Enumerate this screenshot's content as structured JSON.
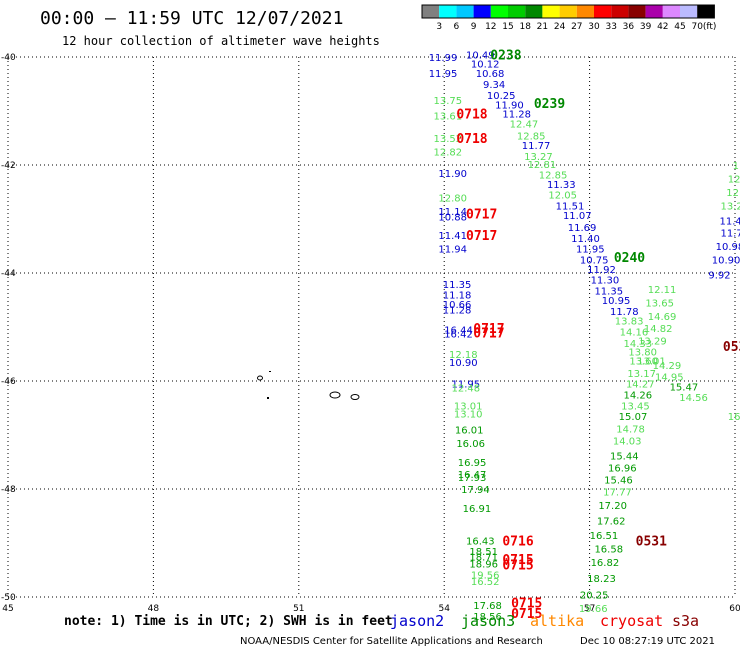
{
  "header": {
    "title": "00:00 – 11:59 UTC 12/07/2021",
    "subtitle": "12 hour collection of altimeter wave heights"
  },
  "colorbar": {
    "ticks": [
      "3",
      "6",
      "9",
      "12",
      "15",
      "18",
      "21",
      "24",
      "27",
      "30",
      "33",
      "36",
      "39",
      "42",
      "45",
      "70"
    ],
    "unit": "(ft)",
    "colors": [
      "#808080",
      "#00ffff",
      "#00c8ff",
      "#0000ff",
      "#00ff00",
      "#00cc00",
      "#008800",
      "#ffff00",
      "#ffcc00",
      "#ff8800",
      "#ff0000",
      "#cc0000",
      "#880000",
      "#aa00aa",
      "#dd88ff",
      "#bbbbff",
      "#000000"
    ]
  },
  "footer": {
    "note": "note: 1) Time is in UTC; 2) SWH is in feet",
    "satellites": [
      {
        "name": "jason2",
        "color": "#0000cc"
      },
      {
        "name": "jason3",
        "color": "#008800"
      },
      {
        "name": "altika",
        "color": "#ff8800"
      },
      {
        "name": "cryosat",
        "color": "#ee0000"
      },
      {
        "name": "s3a",
        "color": "#880000"
      }
    ],
    "credit": "NOAA/NESDIS Center for Satellite Applications and Research",
    "timestamp": "Dec 10 08:27:19 UTC 2021"
  },
  "chart_data": {
    "type": "scatter",
    "title": "00:00 – 11:59 UTC 12/07/2021",
    "subtitle": "12 hour collection of altimeter wave heights",
    "x_ticks": [
      "45",
      "48",
      "51",
      "54",
      "57",
      "60"
    ],
    "y_ticks": [
      "-40",
      "-42",
      "-44",
      "-46",
      "-48",
      "-50"
    ],
    "xlim": [
      45,
      60
    ],
    "ylim": [
      -50,
      -40
    ],
    "grid": true,
    "colors": {
      "blue": "#0000cc",
      "lightgreen": "#55dd55",
      "green": "#009900",
      "darkgreen": "#008800",
      "red": "#ee0000",
      "darkred": "#880000"
    },
    "labels": [
      {
        "t": "11.99",
        "x": 53.68,
        "y": -40.0,
        "c": "blue"
      },
      {
        "t": "11.95",
        "x": 53.68,
        "y": -40.3,
        "c": "blue"
      },
      {
        "t": "13.75",
        "x": 53.78,
        "y": -40.8,
        "c": "lightgreen"
      },
      {
        "t": "13.61",
        "x": 53.78,
        "y": -41.08,
        "c": "lightgreen"
      },
      {
        "t": "13.52",
        "x": 53.78,
        "y": -41.5,
        "c": "lightgreen"
      },
      {
        "t": "12.82",
        "x": 53.78,
        "y": -41.75,
        "c": "lightgreen"
      },
      {
        "t": "11.90",
        "x": 53.88,
        "y": -42.15,
        "c": "blue"
      },
      {
        "t": "12.80",
        "x": 53.88,
        "y": -42.6,
        "c": "lightgreen"
      },
      {
        "t": "11.14",
        "x": 53.88,
        "y": -42.85,
        "c": "blue"
      },
      {
        "t": "10.88",
        "x": 53.88,
        "y": -42.95,
        "c": "blue"
      },
      {
        "t": "11.41",
        "x": 53.88,
        "y": -43.3,
        "c": "blue"
      },
      {
        "t": "11.94",
        "x": 53.88,
        "y": -43.55,
        "c": "blue"
      },
      {
        "t": "11.35",
        "x": 53.97,
        "y": -44.2,
        "c": "blue"
      },
      {
        "t": "11.18",
        "x": 53.97,
        "y": -44.4,
        "c": "blue"
      },
      {
        "t": "10.66",
        "x": 53.97,
        "y": -44.57,
        "c": "blue"
      },
      {
        "t": "11.28",
        "x": 53.97,
        "y": -44.68,
        "c": "blue"
      },
      {
        "t": "16.44",
        "x": 54.0,
        "y": -45.05,
        "c": "blue"
      },
      {
        "t": "16.42",
        "x": 54.0,
        "y": -45.12,
        "c": "blue"
      },
      {
        "t": "12.18",
        "x": 54.1,
        "y": -45.5,
        "c": "lightgreen"
      },
      {
        "t": "10.90",
        "x": 54.1,
        "y": -45.65,
        "c": "blue"
      },
      {
        "t": "11.95",
        "x": 54.15,
        "y": -46.05,
        "c": "blue"
      },
      {
        "t": "12.48",
        "x": 54.15,
        "y": -46.12,
        "c": "lightgreen"
      },
      {
        "t": "13.01",
        "x": 54.2,
        "y": -46.45,
        "c": "lightgreen"
      },
      {
        "t": "13.10",
        "x": 54.2,
        "y": -46.6,
        "c": "lightgreen"
      },
      {
        "t": "16.01",
        "x": 54.22,
        "y": -46.9,
        "c": "green"
      },
      {
        "t": "16.06",
        "x": 54.25,
        "y": -47.15,
        "c": "green"
      },
      {
        "t": "16.95",
        "x": 54.28,
        "y": -47.5,
        "c": "green"
      },
      {
        "t": "16.47",
        "x": 54.28,
        "y": -47.72,
        "c": "green"
      },
      {
        "t": "17.93",
        "x": 54.28,
        "y": -47.78,
        "c": "green"
      },
      {
        "t": "17.94",
        "x": 54.35,
        "y": -48.0,
        "c": "green"
      },
      {
        "t": "16.91",
        "x": 54.38,
        "y": -48.35,
        "c": "green"
      },
      {
        "t": "16.43",
        "x": 54.45,
        "y": -48.95,
        "c": "green"
      },
      {
        "t": "18.51",
        "x": 54.52,
        "y": -49.15,
        "c": "green"
      },
      {
        "t": "18.71",
        "x": 54.52,
        "y": -49.25,
        "c": "green"
      },
      {
        "t": "18.96",
        "x": 54.52,
        "y": -49.38,
        "c": "green"
      },
      {
        "t": "19.56",
        "x": 54.55,
        "y": -49.58,
        "c": "lightgreen"
      },
      {
        "t": "16.52",
        "x": 54.55,
        "y": -49.7,
        "c": "lightgreen"
      },
      {
        "t": "17.68",
        "x": 54.6,
        "y": -50.15,
        "c": "green"
      },
      {
        "t": "18.56",
        "x": 54.6,
        "y": -50.35,
        "c": "green"
      },
      {
        "t": "10.49",
        "x": 54.45,
        "y": -39.95,
        "c": "blue"
      },
      {
        "t": "10.12",
        "x": 54.55,
        "y": -40.12,
        "c": "blue"
      },
      {
        "t": "10.68",
        "x": 54.65,
        "y": -40.3,
        "c": "blue"
      },
      {
        "t": "9.34",
        "x": 54.8,
        "y": -40.5,
        "c": "blue"
      },
      {
        "t": "10.25",
        "x": 54.88,
        "y": -40.7,
        "c": "blue"
      },
      {
        "t": "11.90",
        "x": 55.05,
        "y": -40.88,
        "c": "blue"
      },
      {
        "t": "11.28",
        "x": 55.2,
        "y": -41.05,
        "c": "blue"
      },
      {
        "t": "12.47",
        "x": 55.35,
        "y": -41.23,
        "c": "lightgreen"
      },
      {
        "t": "12.85",
        "x": 55.5,
        "y": -41.45,
        "c": "lightgreen"
      },
      {
        "t": "11.77",
        "x": 55.6,
        "y": -41.63,
        "c": "blue"
      },
      {
        "t": "13.27",
        "x": 55.65,
        "y": -41.83,
        "c": "lightgreen"
      },
      {
        "t": "12.81",
        "x": 55.72,
        "y": -41.98,
        "c": "lightgreen"
      },
      {
        "t": "12.85",
        "x": 55.95,
        "y": -42.18,
        "c": "lightgreen"
      },
      {
        "t": "11.33",
        "x": 56.12,
        "y": -42.35,
        "c": "blue"
      },
      {
        "t": "12.05",
        "x": 56.15,
        "y": -42.55,
        "c": "lightgreen"
      },
      {
        "t": "11.51",
        "x": 56.3,
        "y": -42.75,
        "c": "blue"
      },
      {
        "t": "11.07",
        "x": 56.45,
        "y": -42.93,
        "c": "blue"
      },
      {
        "t": "11.69",
        "x": 56.55,
        "y": -43.15,
        "c": "blue"
      },
      {
        "t": "11.40",
        "x": 56.62,
        "y": -43.35,
        "c": "blue"
      },
      {
        "t": "11.95",
        "x": 56.72,
        "y": -43.55,
        "c": "blue"
      },
      {
        "t": "10.75",
        "x": 56.8,
        "y": -43.75,
        "c": "blue"
      },
      {
        "t": "11.92",
        "x": 56.95,
        "y": -43.93,
        "c": "blue"
      },
      {
        "t": "11.30",
        "x": 57.02,
        "y": -44.12,
        "c": "blue"
      },
      {
        "t": "11.35",
        "x": 57.1,
        "y": -44.32,
        "c": "blue"
      },
      {
        "t": "10.95",
        "x": 57.25,
        "y": -44.5,
        "c": "blue"
      },
      {
        "t": "11.78",
        "x": 57.42,
        "y": -44.7,
        "c": "blue"
      },
      {
        "t": "13.83",
        "x": 57.52,
        "y": -44.88,
        "c": "lightgreen"
      },
      {
        "t": "14.16",
        "x": 57.62,
        "y": -45.08,
        "c": "lightgreen"
      },
      {
        "t": "14.33",
        "x": 57.7,
        "y": -45.3,
        "c": "lightgreen"
      },
      {
        "t": "13.80",
        "x": 57.8,
        "y": -45.45,
        "c": "lightgreen"
      },
      {
        "t": "13.60",
        "x": 57.82,
        "y": -45.62,
        "c": "lightgreen"
      },
      {
        "t": "13.17",
        "x": 57.78,
        "y": -45.85,
        "c": "lightgreen"
      },
      {
        "t": "14.27",
        "x": 57.75,
        "y": -46.05,
        "c": "lightgreen"
      },
      {
        "t": "14.26",
        "x": 57.7,
        "y": -46.25,
        "c": "green"
      },
      {
        "t": "13.45",
        "x": 57.65,
        "y": -46.45,
        "c": "lightgreen"
      },
      {
        "t": "15.07",
        "x": 57.6,
        "y": -46.65,
        "c": "green"
      },
      {
        "t": "14.78",
        "x": 57.55,
        "y": -46.88,
        "c": "lightgreen"
      },
      {
        "t": "14.03",
        "x": 57.48,
        "y": -47.1,
        "c": "lightgreen"
      },
      {
        "t": "15.44",
        "x": 57.42,
        "y": -47.38,
        "c": "green"
      },
      {
        "t": "16.96",
        "x": 57.38,
        "y": -47.6,
        "c": "green"
      },
      {
        "t": "15.46",
        "x": 57.3,
        "y": -47.82,
        "c": "green"
      },
      {
        "t": "17.77",
        "x": 57.28,
        "y": -48.05,
        "c": "lightgreen"
      },
      {
        "t": "17.20",
        "x": 57.18,
        "y": -48.3,
        "c": "green"
      },
      {
        "t": "17.62",
        "x": 57.15,
        "y": -48.58,
        "c": "green"
      },
      {
        "t": "16.51",
        "x": 57.0,
        "y": -48.85,
        "c": "green"
      },
      {
        "t": "16.58",
        "x": 57.1,
        "y": -49.1,
        "c": "green"
      },
      {
        "t": "16.82",
        "x": 57.02,
        "y": -49.35,
        "c": "green"
      },
      {
        "t": "18.23",
        "x": 56.95,
        "y": -49.65,
        "c": "green"
      },
      {
        "t": "20.25",
        "x": 56.8,
        "y": -49.95,
        "c": "green"
      },
      {
        "t": "19.66",
        "x": 56.78,
        "y": -50.2,
        "c": "lightgreen"
      },
      {
        "t": "12.11",
        "x": 58.2,
        "y": -44.3,
        "c": "lightgreen"
      },
      {
        "t": "13.65",
        "x": 58.15,
        "y": -44.55,
        "c": "lightgreen"
      },
      {
        "t": "14.69",
        "x": 58.2,
        "y": -44.8,
        "c": "lightgreen"
      },
      {
        "t": "14.82",
        "x": 58.12,
        "y": -45.02,
        "c": "lightgreen"
      },
      {
        "t": "13.29",
        "x": 58.0,
        "y": -45.25,
        "c": "lightgreen"
      },
      {
        "t": "13.01",
        "x": 57.98,
        "y": -45.62,
        "c": "lightgreen"
      },
      {
        "t": "14.29",
        "x": 58.3,
        "y": -45.7,
        "c": "lightgreen"
      },
      {
        "t": "14.95",
        "x": 58.35,
        "y": -45.92,
        "c": "lightgreen"
      },
      {
        "t": "15.47",
        "x": 58.65,
        "y": -46.1,
        "c": "green"
      },
      {
        "t": "14.56",
        "x": 58.85,
        "y": -46.3,
        "c": "lightgreen"
      },
      {
        "t": "16",
        "x": 59.85,
        "y": -46.65,
        "c": "lightgreen"
      },
      {
        "t": "11.49",
        "x": 59.68,
        "y": -43.03,
        "c": "blue"
      },
      {
        "t": "11.78",
        "x": 59.7,
        "y": -43.25,
        "c": "blue"
      },
      {
        "t": "10.98",
        "x": 59.6,
        "y": -43.5,
        "c": "blue"
      },
      {
        "t": "10.90",
        "x": 59.52,
        "y": -43.75,
        "c": "blue"
      },
      {
        "t": "9.92",
        "x": 59.45,
        "y": -44.03,
        "c": "blue"
      },
      {
        "t": "13.2",
        "x": 59.7,
        "y": -42.75,
        "c": "lightgreen"
      },
      {
        "t": "12",
        "x": 59.82,
        "y": -42.5,
        "c": "lightgreen"
      },
      {
        "t": "12",
        "x": 59.85,
        "y": -42.25,
        "c": "lightgreen"
      },
      {
        "t": "1",
        "x": 59.95,
        "y": -42.0,
        "c": "lightgreen"
      }
    ],
    "times": [
      {
        "t": "0238",
        "x": 54.95,
        "y": -39.95,
        "c": "darkgreen"
      },
      {
        "t": "0239",
        "x": 55.85,
        "y": -40.85,
        "c": "darkgreen"
      },
      {
        "t": "0240",
        "x": 57.5,
        "y": -43.7,
        "c": "darkgreen"
      },
      {
        "t": "0718",
        "x": 54.25,
        "y": -41.05,
        "c": "red"
      },
      {
        "t": "0718",
        "x": 54.25,
        "y": -41.5,
        "c": "red"
      },
      {
        "t": "0717",
        "x": 54.45,
        "y": -42.9,
        "c": "red"
      },
      {
        "t": "0717",
        "x": 54.45,
        "y": -43.3,
        "c": "red"
      },
      {
        "t": "0717",
        "x": 54.6,
        "y": -45.02,
        "c": "red"
      },
      {
        "t": "0717",
        "x": 54.6,
        "y": -45.1,
        "c": "red"
      },
      {
        "t": "0716",
        "x": 55.2,
        "y": -48.95,
        "c": "red"
      },
      {
        "t": "0715",
        "x": 55.2,
        "y": -49.3,
        "c": "red"
      },
      {
        "t": "0715",
        "x": 55.2,
        "y": -49.4,
        "c": "red"
      },
      {
        "t": "0715",
        "x": 55.38,
        "y": -50.1,
        "c": "red"
      },
      {
        "t": "0715",
        "x": 55.38,
        "y": -50.3,
        "c": "red"
      },
      {
        "t": "0531",
        "x": 57.95,
        "y": -48.95,
        "c": "darkred"
      },
      {
        "t": "053",
        "x": 59.75,
        "y": -45.35,
        "c": "darkred"
      }
    ]
  }
}
